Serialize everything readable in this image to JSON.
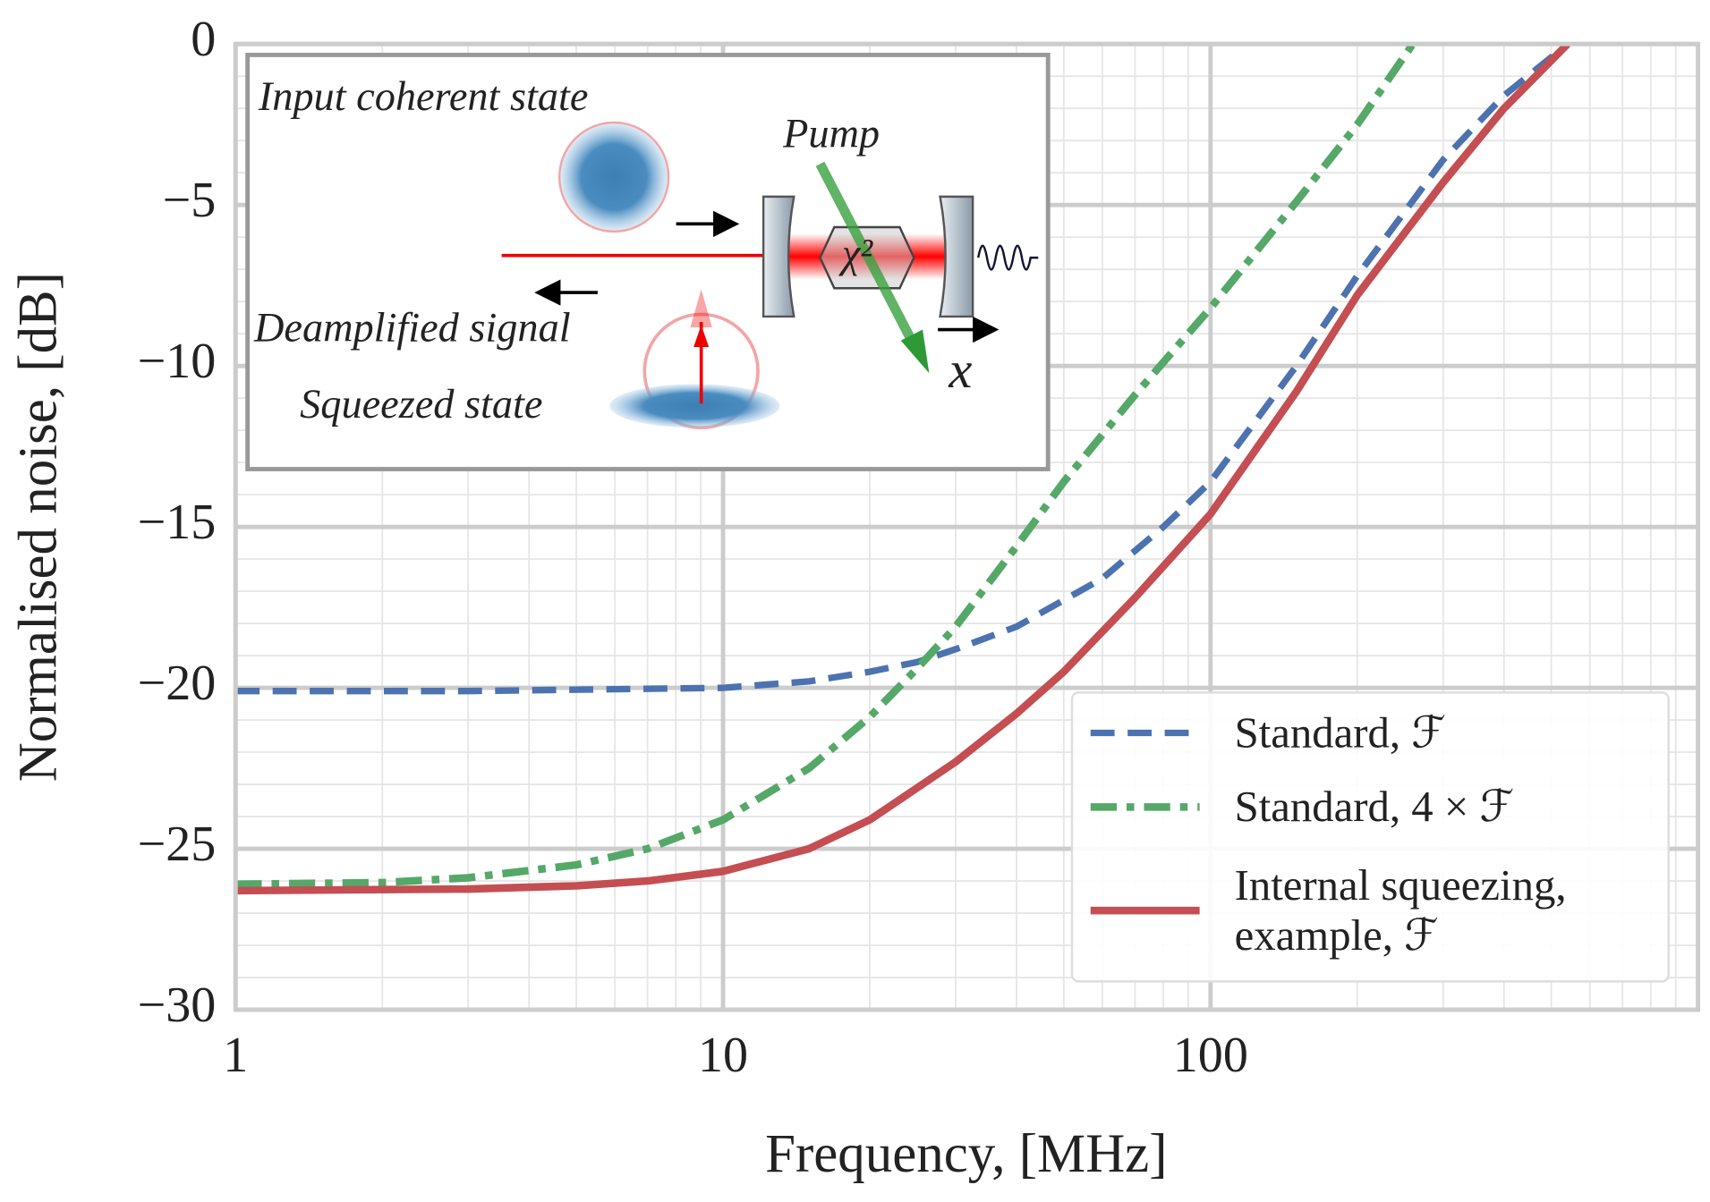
{
  "chart_data": {
    "type": "line",
    "xlabel": "Frequency, [MHz]",
    "ylabel": "Normalised noise, [dB]",
    "xscale": "log",
    "xlim": [
      1,
      1000
    ],
    "xticks": [
      1,
      10,
      100
    ],
    "ylim": [
      -30,
      0
    ],
    "yticks": [
      {
        "value": -30,
        "label": "−30"
      },
      {
        "value": -25,
        "label": "−25"
      },
      {
        "value": -20,
        "label": "−20"
      },
      {
        "value": -15,
        "label": "−15"
      },
      {
        "value": -10,
        "label": "−10"
      },
      {
        "value": -5,
        "label": "−5"
      },
      0
    ],
    "grid": true,
    "minor_grid": true,
    "legend": "lower right",
    "series": [
      {
        "name": "Standard, ℱ",
        "color": "#4c72b0",
        "style": "dashed",
        "x": [
          1,
          3,
          10,
          15,
          20,
          25,
          30,
          40,
          60,
          80,
          100,
          150,
          200,
          300,
          400,
          540
        ],
        "values": [
          -20.1,
          -20.1,
          -20,
          -19.8,
          -19.5,
          -19.2,
          -18.8,
          -18.1,
          -16.6,
          -15,
          -13.6,
          -10,
          -7.2,
          -3.6,
          -1.6,
          0
        ]
      },
      {
        "name": "Standard, 4 × ℱ",
        "color": "#55a868",
        "style": "dashdot",
        "x": [
          1,
          2,
          3,
          5,
          7,
          10,
          15,
          20,
          25,
          30,
          40,
          50,
          70,
          100,
          150,
          200,
          260
        ],
        "values": [
          -26.1,
          -26.05,
          -25.9,
          -25.5,
          -25,
          -24.1,
          -22.5,
          -20.9,
          -19.4,
          -18.1,
          -15.6,
          -13.6,
          -10.9,
          -8.2,
          -4.9,
          -2.5,
          0
        ]
      },
      {
        "name": "Internal squeezing, example, ℱ",
        "color": "#c44e52",
        "style": "solid",
        "x": [
          1,
          3,
          5,
          7,
          10,
          15,
          20,
          30,
          40,
          50,
          70,
          100,
          150,
          200,
          300,
          400,
          540
        ],
        "values": [
          -26.3,
          -26.25,
          -26.15,
          -26,
          -25.7,
          -25,
          -24.1,
          -22.3,
          -20.8,
          -19.5,
          -17.2,
          -14.6,
          -10.8,
          -7.8,
          -4.3,
          -2,
          0
        ]
      }
    ]
  },
  "inset": {
    "input_label": "Input coherent state",
    "pump_label": "Pump",
    "crystal_label": "χ²",
    "output_label": "Deamplified  signal",
    "squeezed_label": "Squeezed state",
    "position_label": "x"
  }
}
